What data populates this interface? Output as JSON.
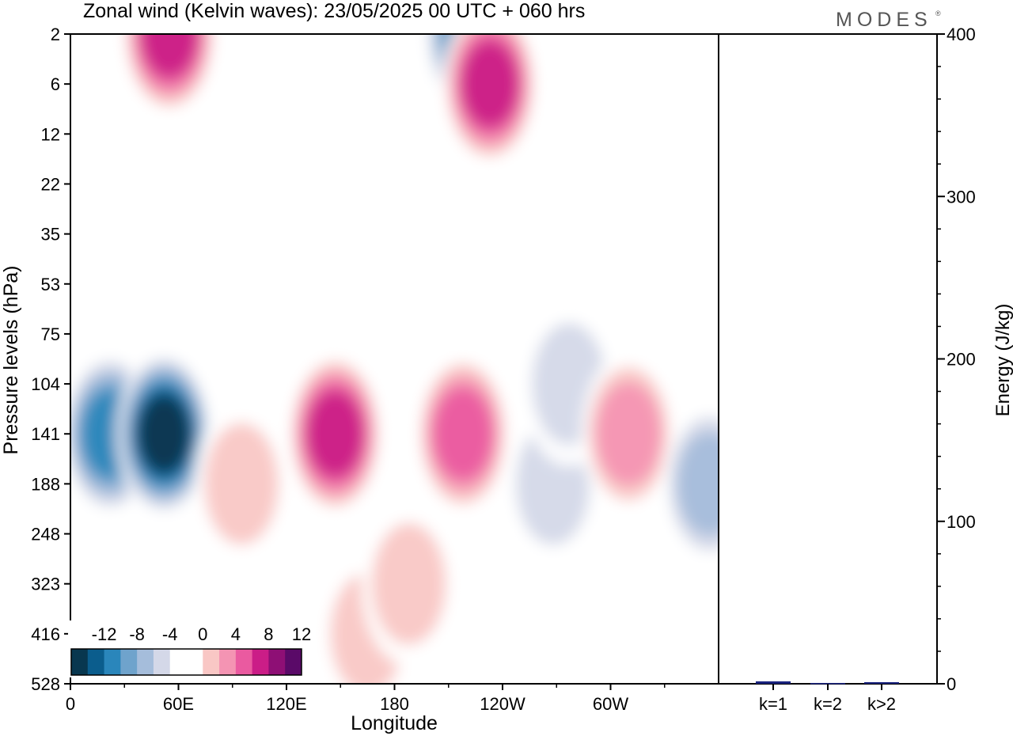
{
  "header": {
    "title": "Zonal wind (Kelvin waves):  23/05/2025  00 UTC  + 060 hrs",
    "logo": "MODES",
    "logo_mark": "®"
  },
  "chart_data": [
    {
      "type": "heatmap",
      "name": "hovmoller",
      "xlabel": "Longitude",
      "ylabel": "Pressure levels (hPa)",
      "x_ticks": [
        "0",
        "60E",
        "120E",
        "180",
        "120W",
        "60W"
      ],
      "x_tick_values": [
        0,
        60,
        120,
        180,
        240,
        300
      ],
      "xlim": [
        0,
        360
      ],
      "y_ticks": [
        "2",
        "6",
        "12",
        "22",
        "35",
        "53",
        "75",
        "104",
        "141",
        "188",
        "248",
        "323",
        "416",
        "528"
      ],
      "y_scale": "categorical pressure levels, top to bottom",
      "colorbar": {
        "labels": [
          "-12",
          "-8",
          "-4",
          "0",
          "4",
          "8",
          "12"
        ],
        "levels": [
          -14,
          -12,
          -10,
          -8,
          -6,
          -4,
          -2,
          0,
          2,
          4,
          6,
          8,
          10,
          12,
          14
        ],
        "colors": [
          "#08374f",
          "#0b5d8d",
          "#2a86bb",
          "#6fa3cc",
          "#a5bddb",
          "#d4d8e8",
          "#ffffff",
          "#ffffff",
          "#f9c7c5",
          "#f494b3",
          "#ea5aa0",
          "#cb1d87",
          "#8e0f75",
          "#5a0a68"
        ]
      },
      "features": [
        {
          "lon": 22,
          "lev": "141",
          "value": -9
        },
        {
          "lon": 52,
          "lev": "141",
          "value": -14
        },
        {
          "lon": 55,
          "lev": "2",
          "value": 10
        },
        {
          "lon": 95,
          "lev": "188",
          "value": 3
        },
        {
          "lon": 147,
          "lev": "141",
          "value": 10
        },
        {
          "lon": 165,
          "lev": "416",
          "value": 3
        },
        {
          "lon": 188,
          "lev": "323",
          "value": 3
        },
        {
          "lon": 223,
          "lev": "2",
          "value": -9
        },
        {
          "lon": 233,
          "lev": "6",
          "value": 10
        },
        {
          "lon": 218,
          "lev": "141",
          "value": 7
        },
        {
          "lon": 268,
          "lev": "188",
          "value": -3
        },
        {
          "lon": 277,
          "lev": "104",
          "value": -4
        },
        {
          "lon": 310,
          "lev": "141",
          "value": 5
        },
        {
          "lon": 355,
          "lev": "188",
          "value": -6
        }
      ]
    },
    {
      "type": "bar",
      "name": "energy",
      "categories": [
        "k=1",
        "k=2",
        "k>2"
      ],
      "values": [
        1.5,
        0.5,
        1.0
      ],
      "ylabel": "Energy (J/kg)",
      "ylim": [
        0,
        400
      ],
      "y_ticks": [
        "0",
        "100",
        "200",
        "300",
        "400"
      ],
      "bar_color": "#1a237e"
    }
  ]
}
